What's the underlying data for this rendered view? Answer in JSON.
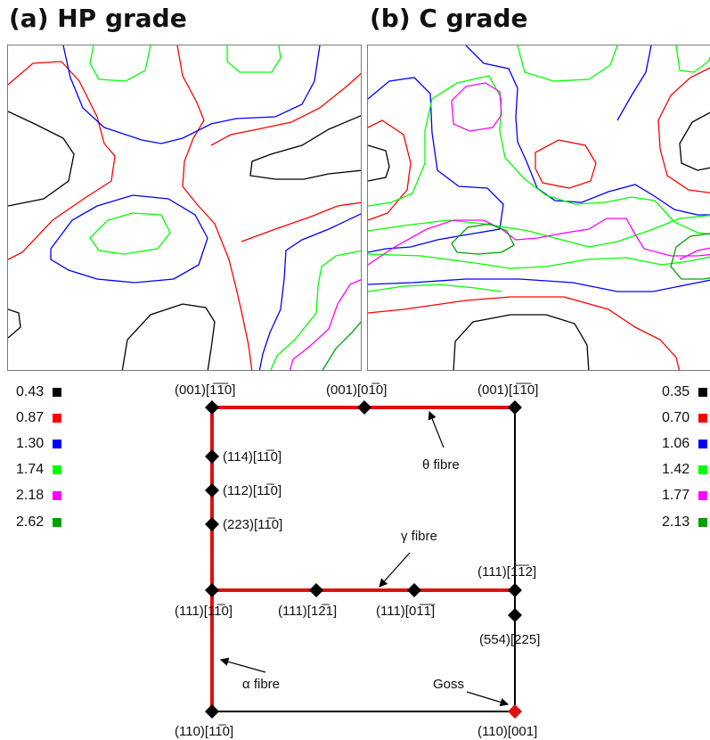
{
  "panels": [
    {
      "title": "(a) HP grade",
      "legend": [
        {
          "value": "0.43",
          "color": "#000000"
        },
        {
          "value": "0.87",
          "color": "#ff0000"
        },
        {
          "value": "1.30",
          "color": "#0000ff"
        },
        {
          "value": "1.74",
          "color": "#00ff00"
        },
        {
          "value": "2.18",
          "color": "#ff00ff"
        },
        {
          "value": "2.62",
          "color": "#00a000"
        }
      ]
    },
    {
      "title": "(b) C grade",
      "legend": [
        {
          "value": "0.35",
          "color": "#000000"
        },
        {
          "value": "0.70",
          "color": "#ff0000"
        },
        {
          "value": "1.06",
          "color": "#0000ff"
        },
        {
          "value": "1.42",
          "color": "#00ff00"
        },
        {
          "value": "1.77",
          "color": "#ff00ff"
        },
        {
          "value": "2.13",
          "color": "#00a000"
        }
      ]
    }
  ],
  "schematic": {
    "orientations": {
      "top_left": "(001)[1̅1̅0]",
      "top_mid": "(001)[01̅0]",
      "top_right": "(001)[1̅1̅0]",
      "o114": "(114)[11̅0]",
      "o112": "(112)[11̅0]",
      "o223": "(223)[11̅0]",
      "o111_left": "(111)[11̅0]",
      "o111_121": "(111)[12̅1]",
      "o111_011": "(111)[01̅1̅]",
      "o111_right": "(111)[1̅1̅2]",
      "o554": "(554)[225]",
      "o110_left": "(110)[11̅0]",
      "o110_right": "(110)[001]"
    },
    "fibres": {
      "theta": "θ fibre",
      "gamma": "γ fibre",
      "alpha": "α fibre",
      "goss": "Goss"
    },
    "colors": {
      "fibre": "#e01010",
      "frame": "#000000",
      "goss_marker": "#e01010"
    }
  }
}
